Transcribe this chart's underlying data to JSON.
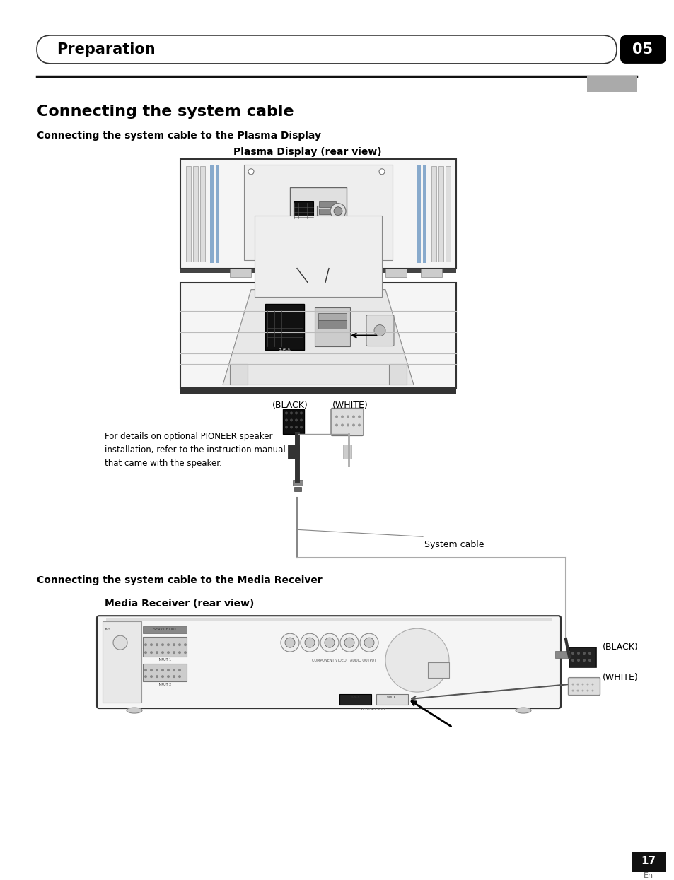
{
  "page_bg": "#ffffff",
  "header_text": "Preparation",
  "header_number": "05",
  "section_title": "Connecting the system cable",
  "subsection1": "Connecting the system cable to the Plasma Display",
  "diagram1_title": "Plasma Display (rear view)",
  "note_text": "For details on optional PIONEER speaker\ninstallation, refer to the instruction manual\nthat came with the speaker.",
  "black_label1": "(BLACK)",
  "white_label1": "(WHITE)",
  "system_cable_label": "System cable",
  "subsection2": "Connecting the system cable to the Media Receiver",
  "diagram2_title": "Media Receiver (rear view)",
  "black_label2": "(BLACK)",
  "white_label2": "(WHITE)",
  "page_number": "17",
  "page_en": "En",
  "gray_tab_color": "#999999"
}
